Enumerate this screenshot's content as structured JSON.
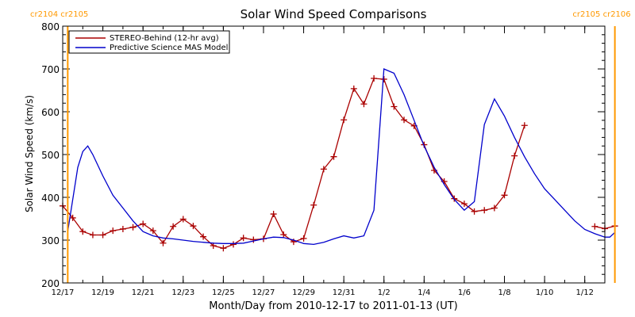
{
  "chart_data": {
    "type": "line",
    "title": "Solar Wind Speed Comparisons",
    "xlabel": "Month/Day from 2010-12-17 to 2011-01-13 (UT)",
    "ylabel": "Solar Wind Speed (km/s)",
    "xlim": [
      "2010-12-17",
      "2011-01-13"
    ],
    "ylim": [
      200,
      800
    ],
    "y_ticks": [
      200,
      300,
      400,
      500,
      600,
      700,
      800
    ],
    "x_ticks": [
      {
        "date": "2010-12-17",
        "label": "12/17"
      },
      {
        "date": "2010-12-19",
        "label": "12/19"
      },
      {
        "date": "2010-12-21",
        "label": "12/21"
      },
      {
        "date": "2010-12-23",
        "label": "12/23"
      },
      {
        "date": "2010-12-25",
        "label": "12/25"
      },
      {
        "date": "2010-12-27",
        "label": "12/27"
      },
      {
        "date": "2010-12-29",
        "label": "12/29"
      },
      {
        "date": "2010-12-31",
        "label": "12/31"
      },
      {
        "date": "2011-01-02",
        "label": "1/2"
      },
      {
        "date": "2011-01-04",
        "label": "1/4"
      },
      {
        "date": "2011-01-06",
        "label": "1/6"
      },
      {
        "date": "2011-01-08",
        "label": "1/8"
      },
      {
        "date": "2011-01-10",
        "label": "1/10"
      },
      {
        "date": "2011-01-12",
        "label": "1/12"
      }
    ],
    "legend_position": "top-left",
    "rotation_markers": [
      {
        "date": "2010-12-17 06:00",
        "label": "cr2104 cr2105",
        "align": "left",
        "color": "#ff9900"
      },
      {
        "date": "2011-01-13 12:00",
        "label": "cr2105 cr2106",
        "align": "right",
        "color": "#ff9900"
      }
    ],
    "series": [
      {
        "name": "STEREO-Behind (12-hr avg)",
        "color": "#aa0000",
        "marker": "plus",
        "x": [
          "2010-12-17 00:00",
          "2010-12-17 12:00",
          "2010-12-18 00:00",
          "2010-12-18 12:00",
          "2010-12-19 00:00",
          "2010-12-19 12:00",
          "2010-12-20 00:00",
          "2010-12-20 12:00",
          "2010-12-21 00:00",
          "2010-12-21 12:00",
          "2010-12-22 00:00",
          "2010-12-22 12:00",
          "2010-12-23 00:00",
          "2010-12-23 12:00",
          "2010-12-24 00:00",
          "2010-12-24 12:00",
          "2010-12-25 00:00",
          "2010-12-25 12:00",
          "2010-12-26 00:00",
          "2010-12-26 12:00",
          "2010-12-27 00:00",
          "2010-12-27 12:00",
          "2010-12-28 00:00",
          "2010-12-28 12:00",
          "2010-12-29 00:00",
          "2010-12-29 12:00",
          "2010-12-30 00:00",
          "2010-12-30 12:00",
          "2010-12-31 00:00",
          "2010-12-31 12:00",
          "2011-01-01 00:00",
          "2011-01-01 12:00",
          "2011-01-02 00:00",
          "2011-01-02 12:00",
          "2011-01-03 00:00",
          "2011-01-03 12:00",
          "2011-01-04 00:00",
          "2011-01-04 12:00",
          "2011-01-05 00:00",
          "2011-01-05 12:00",
          "2011-01-06 00:00",
          "2011-01-06 12:00",
          "2011-01-07 00:00",
          "2011-01-07 12:00",
          "2011-01-08 00:00",
          "2011-01-08 12:00",
          "2011-01-09 00:00",
          "2011-01-12 12:00",
          "2011-01-13 00:00",
          "2011-01-13 12:00"
        ],
        "y": [
          380,
          352,
          320,
          312,
          312,
          322,
          326,
          330,
          338,
          322,
          293,
          332,
          349,
          333,
          308,
          287,
          281,
          290,
          305,
          301,
          303,
          361,
          313,
          296,
          304,
          382,
          466,
          495,
          581,
          654,
          618,
          678,
          676,
          612,
          581,
          567,
          523,
          463,
          437,
          397,
          385,
          367,
          370,
          375,
          405,
          497,
          568,
          332,
          327,
          333
        ]
      },
      {
        "name": "Predictive Science MAS Model",
        "color": "#0000cc",
        "marker": "none",
        "x": [
          "2010-12-17 06:00",
          "2010-12-17 18:00",
          "2010-12-18 00:00",
          "2010-12-18 06:00",
          "2010-12-18 12:00",
          "2010-12-19 00:00",
          "2010-12-19 12:00",
          "2010-12-20 00:00",
          "2010-12-20 12:00",
          "2010-12-21 00:00",
          "2010-12-21 12:00",
          "2010-12-22 00:00",
          "2010-12-22 12:00",
          "2010-12-23 00:00",
          "2010-12-23 12:00",
          "2010-12-24 00:00",
          "2010-12-24 12:00",
          "2010-12-25 00:00",
          "2010-12-25 12:00",
          "2010-12-26 00:00",
          "2010-12-26 12:00",
          "2010-12-27 00:00",
          "2010-12-27 12:00",
          "2010-12-28 00:00",
          "2010-12-28 12:00",
          "2010-12-29 00:00",
          "2010-12-29 12:00",
          "2010-12-30 00:00",
          "2010-12-30 12:00",
          "2010-12-31 00:00",
          "2010-12-31 12:00",
          "2011-01-01 00:00",
          "2011-01-01 12:00",
          "2011-01-02 00:00",
          "2011-01-02 12:00",
          "2011-01-03 00:00",
          "2011-01-03 12:00",
          "2011-01-04 00:00",
          "2011-01-04 12:00",
          "2011-01-05 00:00",
          "2011-01-05 12:00",
          "2011-01-06 00:00",
          "2011-01-06 12:00",
          "2011-01-07 00:00",
          "2011-01-07 12:00",
          "2011-01-08 00:00",
          "2011-01-08 12:00",
          "2011-01-09 00:00",
          "2011-01-09 12:00",
          "2011-01-10 00:00",
          "2011-01-10 12:00",
          "2011-01-11 00:00",
          "2011-01-11 12:00",
          "2011-01-12 00:00",
          "2011-01-12 12:00",
          "2011-01-13 00:00",
          "2011-01-13 06:00",
          "2011-01-13 12:00"
        ],
        "y": [
          320,
          470,
          507,
          520,
          500,
          450,
          405,
          375,
          345,
          320,
          310,
          305,
          303,
          300,
          297,
          295,
          293,
          292,
          292,
          293,
          298,
          303,
          307,
          306,
          300,
          292,
          290,
          295,
          303,
          310,
          305,
          310,
          370,
          700,
          690,
          640,
          580,
          520,
          470,
          430,
          395,
          370,
          390,
          570,
          630,
          590,
          540,
          495,
          455,
          420,
          395,
          370,
          345,
          325,
          315,
          307,
          307,
          318
        ]
      }
    ]
  }
}
